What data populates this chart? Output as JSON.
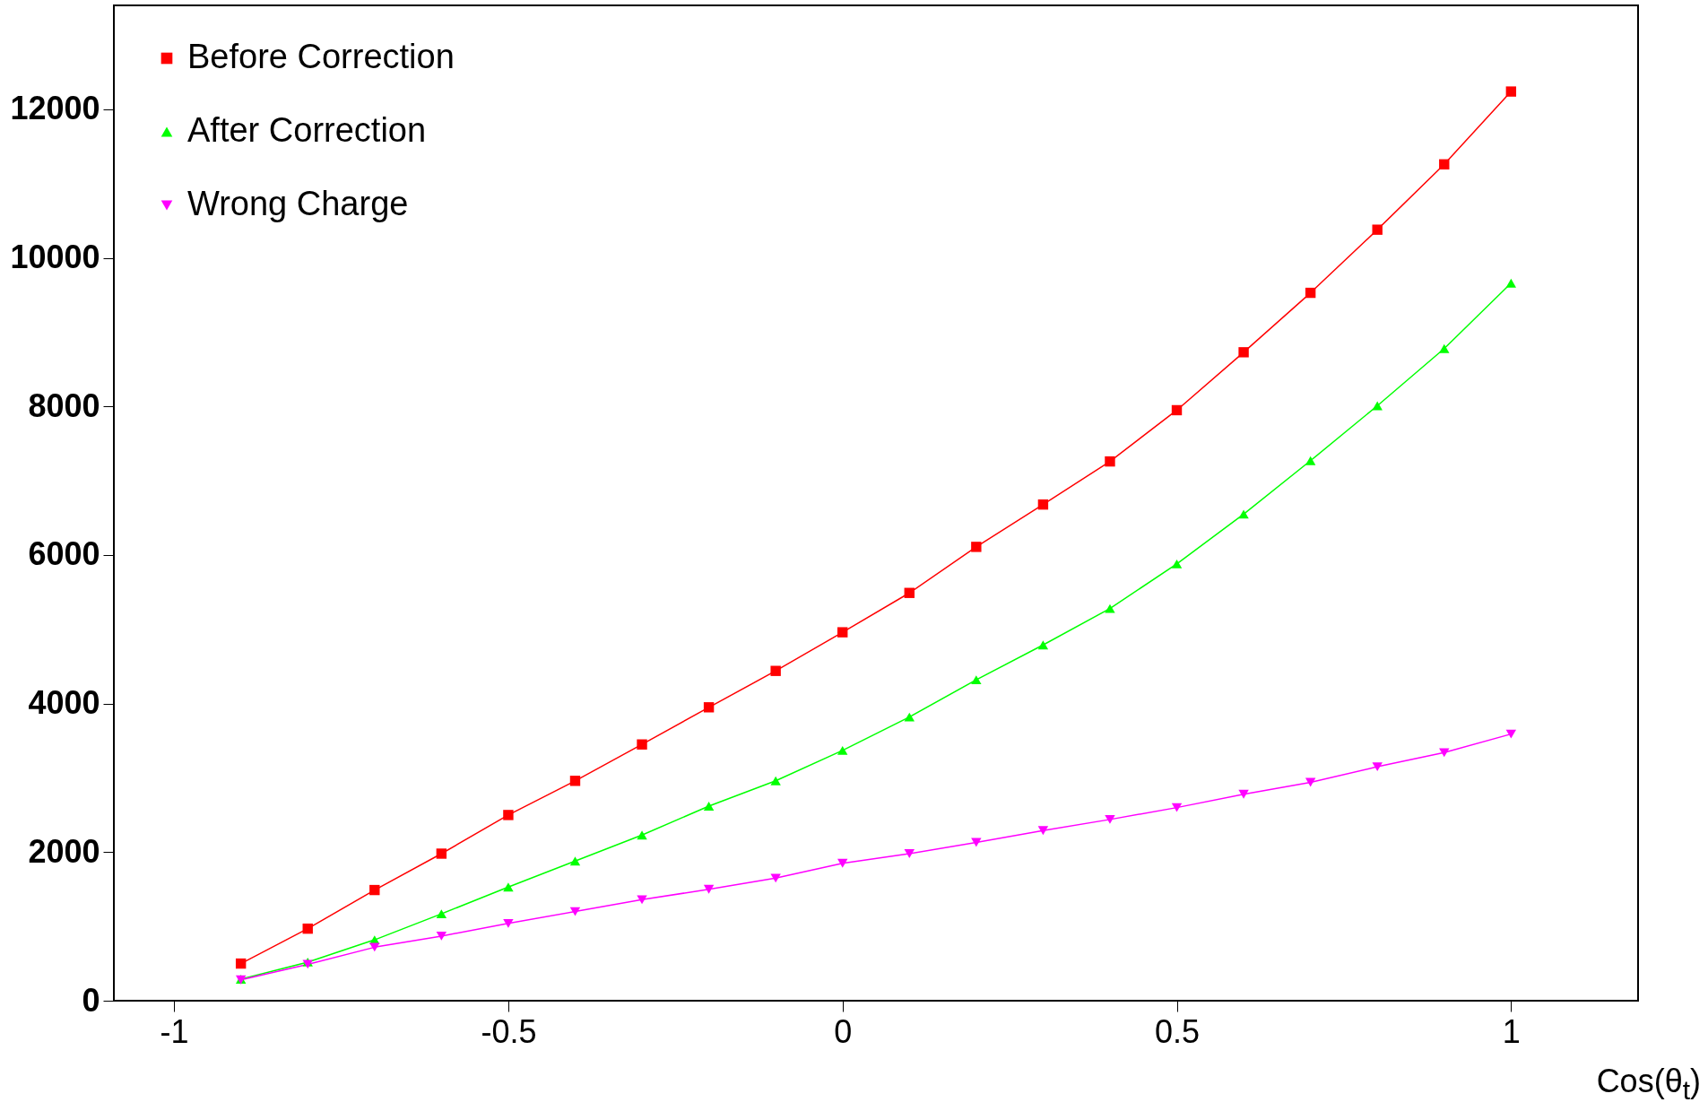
{
  "chart_data": {
    "type": "line",
    "xlabel": "Cos(θ$_{t}$)",
    "x": [
      -0.9,
      -0.8,
      -0.7,
      -0.6,
      -0.5,
      -0.4,
      -0.3,
      -0.2,
      -0.1,
      0,
      0.1,
      0.2,
      0.3,
      0.4,
      0.5,
      0.6,
      0.7,
      0.8,
      0.9,
      1.0
    ],
    "series": [
      {
        "name": "Before Correction",
        "color": "#ff0000",
        "marker": "square",
        "values": [
          500,
          970,
          1490,
          1980,
          2500,
          2960,
          3450,
          3950,
          4440,
          4960,
          5490,
          6110,
          6680,
          7260,
          7950,
          8730,
          9530,
          10380,
          11260,
          12240
        ]
      },
      {
        "name": "After Correction",
        "color": "#00ff00",
        "marker": "triangle",
        "values": [
          290,
          520,
          820,
          1170,
          1530,
          1880,
          2230,
          2620,
          2960,
          3370,
          3820,
          4320,
          4790,
          5280,
          5880,
          6550,
          7270,
          8010,
          8780,
          9660
        ]
      },
      {
        "name": "Wrong Charge",
        "color": "#ff00ff",
        "marker": "triangle-down",
        "values": [
          280,
          490,
          720,
          870,
          1040,
          1200,
          1360,
          1500,
          1650,
          1850,
          1980,
          2130,
          2290,
          2440,
          2600,
          2780,
          2940,
          3150,
          3340,
          3590
        ]
      }
    ],
    "xlim": [
      -1.09,
      1.19
    ],
    "xticks": [
      -1,
      -0.5,
      0,
      0.5,
      1
    ],
    "ylim": [
      0,
      13400
    ],
    "yticks": [
      0,
      2000,
      4000,
      6000,
      8000,
      10000,
      12000
    ],
    "grid": false,
    "legend": "top left",
    "line_style": "solid"
  }
}
